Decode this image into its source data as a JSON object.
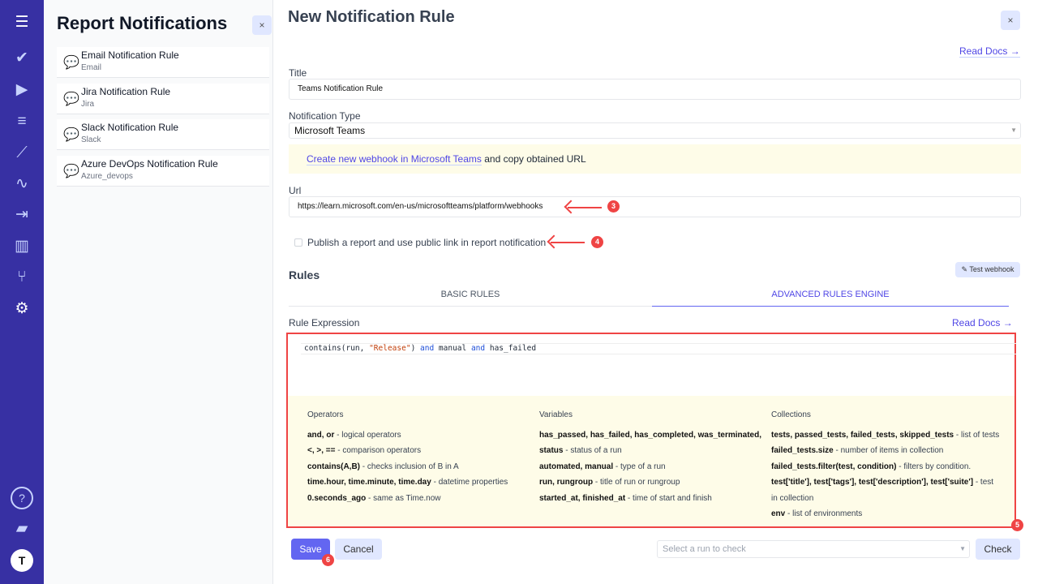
{
  "sidebar": {
    "icons": [
      "menu-icon",
      "check-icon",
      "play-icon",
      "checklist-icon",
      "steps-icon",
      "pulse-icon",
      "import-icon",
      "analytics-icon",
      "branch-icon",
      "gear-icon",
      "help-icon",
      "folder-icon",
      "avatar-icon"
    ]
  },
  "list": {
    "title": "Report Notifications",
    "close": "×",
    "items": [
      {
        "title": "Email Notification Rule",
        "sub": "Email"
      },
      {
        "title": "Jira Notification Rule",
        "sub": "Jira"
      },
      {
        "title": "Slack Notification Rule",
        "sub": "Slack"
      },
      {
        "title": "Azure DevOps Notification Rule",
        "sub": "Azure_devops"
      }
    ]
  },
  "form": {
    "heading": "New Notification Rule",
    "close": "×",
    "read_docs": "Read Docs →",
    "title_label": "Title",
    "title_value": "Teams Notification Rule",
    "type_label": "Notification Type",
    "type_value": "Microsoft Teams",
    "note_link": "Create new webhook in Microsoft Teams",
    "note_text": " and copy obtained URL",
    "url_label": "Url",
    "url_value": "https://learn.microsoft.com/en-us/microsoftteams/platform/webhooks",
    "publish_label": "Publish a report and use public link in report notification",
    "rules_heading": "Rules",
    "test_webhook": "Test webhook",
    "tabs": [
      "BASIC RULES",
      "ADVANCED RULES ENGINE"
    ],
    "expr_label": "Rule Expression",
    "expr_docs": "Read Docs →",
    "code": {
      "fn": "contains(run, ",
      "str": "\"Release\"",
      "rest1": ") ",
      "and1": "and",
      "m": " manual ",
      "and2": "and",
      "end": " has_failed"
    },
    "help": {
      "operators": {
        "title": "Operators",
        "rows": [
          [
            "and, or",
            " - logical operators"
          ],
          [
            "<, >, ==",
            " - comparison operators"
          ],
          [
            "contains(A,B)",
            " - checks inclusion of B in A"
          ],
          [
            "time.hour, time.minute, time.day",
            " - datetime properties"
          ],
          [
            "0.seconds_ago",
            " - same as Time.now"
          ]
        ]
      },
      "variables": {
        "title": "Variables",
        "rows": [
          [
            "has_passed, has_failed, has_completed, was_terminated,",
            ""
          ],
          [
            "status",
            " - status of a run"
          ],
          [
            "automated, manual",
            " - type of a run"
          ],
          [
            "run, rungroup",
            " - title of run or rungroup"
          ],
          [
            "started_at, finished_at",
            " - time of start and finish"
          ]
        ]
      },
      "collections": {
        "title": "Collections",
        "rows": [
          [
            "tests, passed_tests, failed_tests, skipped_tests",
            " - list of tests"
          ],
          [
            "failed_tests.size",
            " - number of items in collection"
          ],
          [
            "failed_tests.filter(test, condition)",
            " - filters by condition."
          ],
          [
            "test['title'], test['tags'], test['description'], test['suite']",
            " - test"
          ],
          [
            "",
            " in collection"
          ],
          [
            "env",
            " - list of environments"
          ]
        ]
      }
    },
    "save": "Save",
    "cancel": "Cancel",
    "run_placeholder": "Select a run to check",
    "check": "Check"
  },
  "annotations": [
    "3",
    "4",
    "5",
    "6"
  ],
  "colors": {
    "sidebar": "#3730a3",
    "accent": "#6366f1",
    "annotation": "#ef4444"
  }
}
